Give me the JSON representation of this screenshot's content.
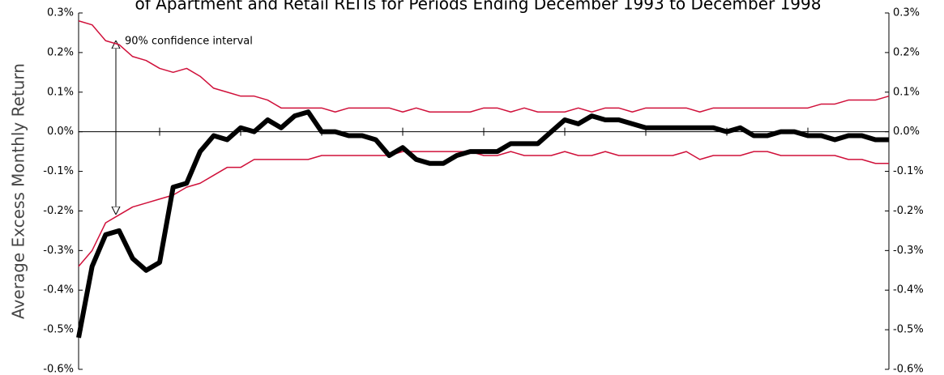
{
  "chart_data": {
    "type": "line",
    "title": "of Apartment and Retail REITs for Periods Ending December 1993 to December 1998",
    "y_label": "Average Excess Monthly Return",
    "annotation": "90% confidence interval",
    "ylim": [
      -0.6,
      0.3
    ],
    "yticks": [
      {
        "value": -0.6,
        "label": "-0.6%"
      },
      {
        "value": -0.5,
        "label": "-0.5%"
      },
      {
        "value": -0.4,
        "label": "-0.4%"
      },
      {
        "value": -0.3,
        "label": "-0.3%"
      },
      {
        "value": -0.2,
        "label": "-0.2%"
      },
      {
        "value": -0.1,
        "label": "-0.1%"
      },
      {
        "value": 0,
        "label": "0.0%"
      },
      {
        "value": 0.1,
        "label": "0.1%"
      },
      {
        "value": 0.2,
        "label": "0.2%"
      },
      {
        "value": 0.3,
        "label": "0.3%"
      }
    ],
    "series": [
      {
        "color": "#d0103a",
        "width": 1.5,
        "values": [
          0.28,
          0.27,
          0.23,
          0.22,
          0.19,
          0.18,
          0.16,
          0.15,
          0.16,
          0.14,
          0.11,
          0.1,
          0.09,
          0.09,
          0.08,
          0.06,
          0.06,
          0.06,
          0.06,
          0.05,
          0.06,
          0.06,
          0.06,
          0.06,
          0.05,
          0.06,
          0.05,
          0.05,
          0.05,
          0.05,
          0.06,
          0.06,
          0.05,
          0.06,
          0.05,
          0.05,
          0.05,
          0.06,
          0.05,
          0.06,
          0.06,
          0.05,
          0.06,
          0.06,
          0.06,
          0.06,
          0.05,
          0.06,
          0.06,
          0.06,
          0.06,
          0.06,
          0.06,
          0.06,
          0.06,
          0.07,
          0.07,
          0.08,
          0.08,
          0.08,
          0.09
        ]
      },
      {
        "color": "#d0103a",
        "width": 1.5,
        "values": [
          -0.34,
          -0.3,
          -0.23,
          -0.21,
          -0.19,
          -0.18,
          -0.17,
          -0.16,
          -0.14,
          -0.13,
          -0.11,
          -0.09,
          -0.09,
          -0.07,
          -0.07,
          -0.07,
          -0.07,
          -0.07,
          -0.06,
          -0.06,
          -0.06,
          -0.06,
          -0.06,
          -0.06,
          -0.05,
          -0.05,
          -0.05,
          -0.05,
          -0.05,
          -0.05,
          -0.06,
          -0.06,
          -0.05,
          -0.06,
          -0.06,
          -0.06,
          -0.05,
          -0.06,
          -0.06,
          -0.05,
          -0.06,
          -0.06,
          -0.06,
          -0.06,
          -0.06,
          -0.05,
          -0.07,
          -0.06,
          -0.06,
          -0.06,
          -0.05,
          -0.05,
          -0.06,
          -0.06,
          -0.06,
          -0.06,
          -0.06,
          -0.07,
          -0.07,
          -0.08,
          -0.08
        ]
      },
      {
        "color": "#000000",
        "width": 6,
        "values": [
          -0.52,
          -0.34,
          -0.26,
          -0.25,
          -0.32,
          -0.35,
          -0.33,
          -0.14,
          -0.13,
          -0.05,
          -0.01,
          -0.02,
          0.01,
          0.0,
          0.03,
          0.01,
          0.04,
          0.05,
          0.0,
          0.0,
          -0.01,
          -0.01,
          -0.02,
          -0.06,
          -0.04,
          -0.07,
          -0.08,
          -0.08,
          -0.06,
          -0.05,
          -0.05,
          -0.05,
          -0.03,
          -0.03,
          -0.03,
          0.0,
          0.03,
          0.02,
          0.04,
          0.03,
          0.03,
          0.02,
          0.01,
          0.01,
          0.01,
          0.01,
          0.01,
          0.01,
          0.0,
          0.01,
          -0.01,
          -0.01,
          0.0,
          0.0,
          -0.01,
          -0.01,
          -0.02,
          -0.01,
          -0.01,
          -0.02,
          -0.02
        ]
      }
    ]
  }
}
